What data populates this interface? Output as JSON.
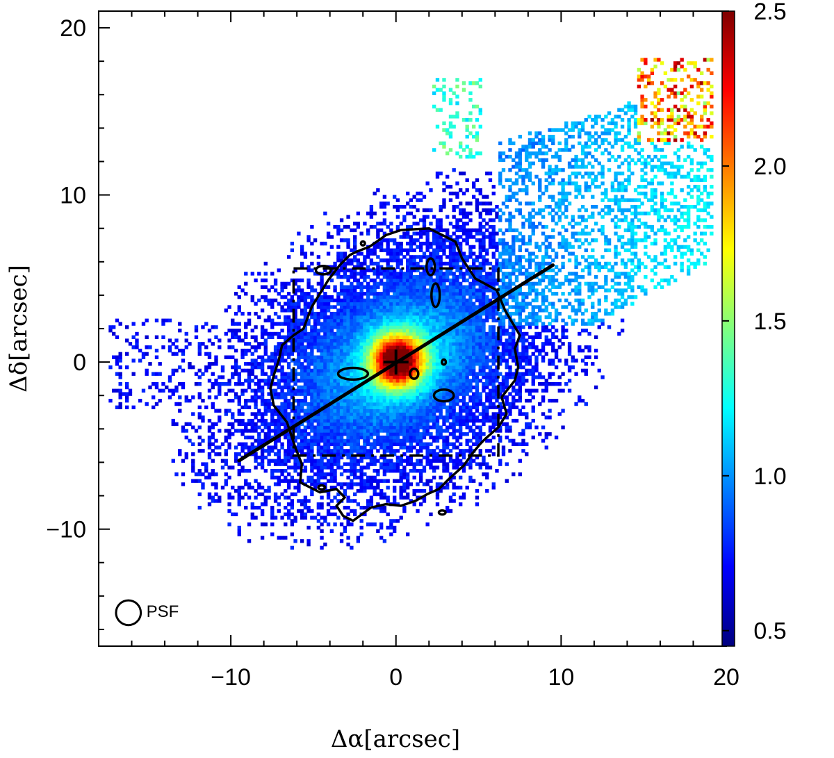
{
  "chart_data": {
    "type": "heatmap",
    "title": "",
    "xlabel": "Δα[arcsec]",
    "ylabel": "Δδ[arcsec]",
    "xlim": [
      -18,
      20
    ],
    "ylim": [
      -17,
      21
    ],
    "x_ticks": [
      -10,
      0,
      10,
      20
    ],
    "x_tick_labels": [
      "−10",
      "0",
      "10",
      "20"
    ],
    "y_ticks": [
      -10,
      0,
      10,
      20
    ],
    "y_tick_labels": [
      "−10",
      "0",
      "10",
      "20"
    ],
    "colorbar": {
      "range": [
        0.45,
        2.5
      ],
      "ticks": [
        0.5,
        1.0,
        1.5,
        2.0,
        2.5
      ],
      "tick_labels": [
        "0.5",
        "1.0",
        "1.5",
        "2.0",
        "2.5"
      ],
      "colormap": "jet"
    },
    "peak": {
      "x": 0,
      "y": 0,
      "value": 2.4
    },
    "center_marker": {
      "x": 0,
      "y": 0,
      "symbol": "plus"
    },
    "major_axis_line": {
      "x": [
        -9.5,
        9.5
      ],
      "y": [
        -5.9,
        5.8
      ]
    },
    "dash_dot_box": {
      "x": [
        -6.2,
        6.2
      ],
      "y": [
        -5.6,
        5.6
      ]
    },
    "contour": {
      "x": [
        0.3,
        2,
        3.6,
        4,
        4.8,
        6.1,
        6.6,
        7.5,
        7.2,
        7.4,
        7.2,
        6.8,
        6.4,
        6.7,
        6.2,
        5.4,
        5.1,
        4.6,
        4.1,
        3.2,
        2.6,
        1.9,
        1.2,
        0.3,
        -0.6,
        -1.5,
        -2.6,
        -3.2,
        -3.6,
        -3.1,
        -3.6,
        -4.6,
        -5.8,
        -5.7,
        -6.1,
        -6.6,
        -7.4,
        -7.6,
        -7.4,
        -7.1,
        -6.9,
        -6.2,
        -5.6,
        -5.1,
        -4.1,
        -3.4,
        -2.8,
        -2.4,
        -1.6,
        -0.6,
        0.3
      ],
      "y": [
        7.9,
        8.0,
        7.2,
        6.2,
        5.0,
        4.3,
        3.1,
        1.6,
        0.8,
        -0.3,
        -1.1,
        -1.6,
        -2.1,
        -3.1,
        -3.9,
        -4.6,
        -4.9,
        -5.5,
        -6.2,
        -7.0,
        -7.6,
        -7.9,
        -8.3,
        -8.6,
        -8.5,
        -8.7,
        -9.5,
        -9.2,
        -8.6,
        -8.1,
        -7.6,
        -7.8,
        -7.2,
        -6.1,
        -5.1,
        -3.6,
        -2.6,
        -1.6,
        -0.8,
        0.1,
        1.0,
        1.6,
        2.0,
        3.3,
        4.9,
        5.8,
        6.4,
        6.6,
        6.9,
        7.6,
        7.9
      ]
    },
    "contour_islands": [
      {
        "x": -2.6,
        "y": -0.7,
        "rx": 0.9,
        "ry": 0.35
      },
      {
        "x": 1.1,
        "y": -0.7,
        "rx": 0.25,
        "ry": 0.3
      },
      {
        "x": 2.9,
        "y": -2.0,
        "rx": 0.6,
        "ry": 0.35
      },
      {
        "x": 2.4,
        "y": 4.0,
        "rx": 0.25,
        "ry": 0.7
      },
      {
        "x": 2.1,
        "y": 5.7,
        "rx": 0.25,
        "ry": 0.5
      },
      {
        "x": -4.4,
        "y": 5.5,
        "rx": 0.45,
        "ry": 0.25
      },
      {
        "x": -2.0,
        "y": 7.1,
        "rx": 0.12,
        "ry": 0.12
      },
      {
        "x": 2.9,
        "y": 0,
        "rx": 0.12,
        "ry": 0.15
      },
      {
        "x": -4.5,
        "y": -7.5,
        "rx": 0.2,
        "ry": 0.12
      },
      {
        "x": 2.8,
        "y": -9.0,
        "rx": 0.2,
        "ry": 0.12
      }
    ],
    "psf": {
      "x": -16.2,
      "y": -15.0,
      "radius": 0.75,
      "label": "PSF"
    }
  }
}
